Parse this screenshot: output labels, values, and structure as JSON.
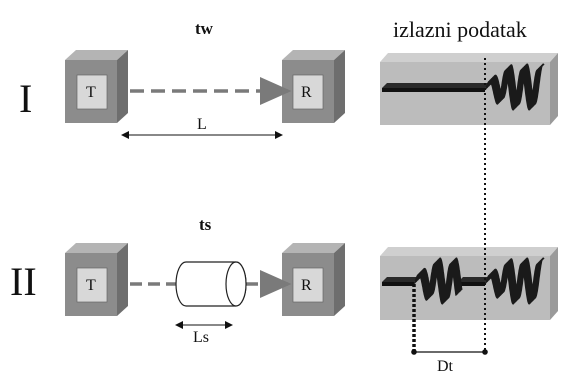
{
  "header": "izlazni podatak",
  "rows": [
    {
      "roman": "I",
      "time_label": "tw",
      "transmitter": "T",
      "receiver": "R",
      "distance_label": "L"
    },
    {
      "roman": "II",
      "time_label": "ts",
      "transmitter": "T",
      "receiver": "R",
      "distance_label": "Ls"
    }
  ],
  "delay_label": "Dt",
  "colors": {
    "block_front": "#8c8c8c",
    "block_top": "#b4b4b4",
    "block_side": "#6e6e6e",
    "label_face": "#d8d8d8",
    "panel": "#bcbcbc",
    "panel_top": "#cfcfcf",
    "panel_side": "#9a9a9a",
    "dash": "#7a7a7a",
    "signal": "#1a1a1a"
  }
}
